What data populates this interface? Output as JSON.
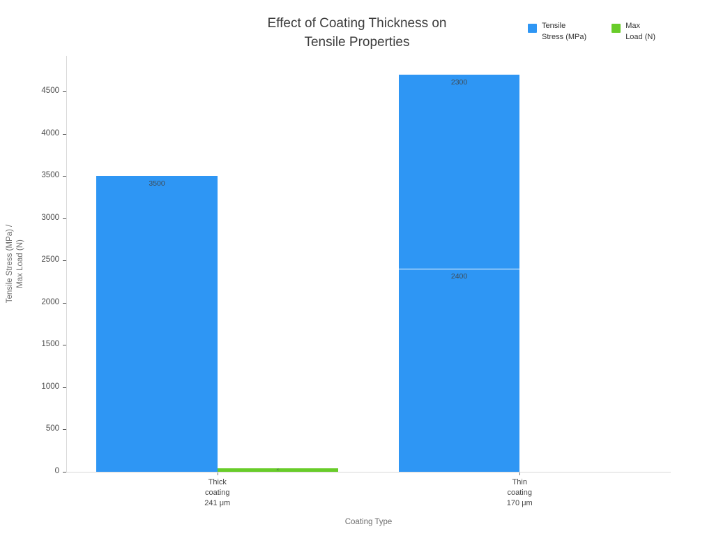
{
  "chart_data": {
    "type": "bar",
    "title": "Effect of Coating Thickness on\nTensile Properties",
    "xlabel": "Coating Type",
    "ylabel": "Tensile Stress (MPa) /\nMax Load (N)",
    "categories": [
      "Thick\ncoating\n241 μm",
      "Thin\ncoating\n170 μm"
    ],
    "yticks": [
      0,
      500,
      1000,
      1500,
      2000,
      2500,
      3000,
      3500,
      4000,
      4500
    ],
    "ylim": [
      0,
      4930
    ],
    "grid": false,
    "legend_position": "top-right",
    "barmode": "grouped, thin-coating tensile stress stacked",
    "series": [
      {
        "name": "Tensile Stress (MPa)",
        "legend_label": "Tensile\nStress (MPa)",
        "color": "#2e96f4",
        "stacks": [
          [
            3500
          ],
          [
            2400,
            2300
          ]
        ]
      },
      {
        "name": "Max Load (N)",
        "legend_label": "Max\nLoad (N)",
        "color": "#68cc29",
        "stacks": [
          [
            40
          ],
          [
            0
          ]
        ]
      }
    ],
    "bar_value_labels": [
      "3500",
      "2400",
      "2300",
      "40"
    ]
  }
}
